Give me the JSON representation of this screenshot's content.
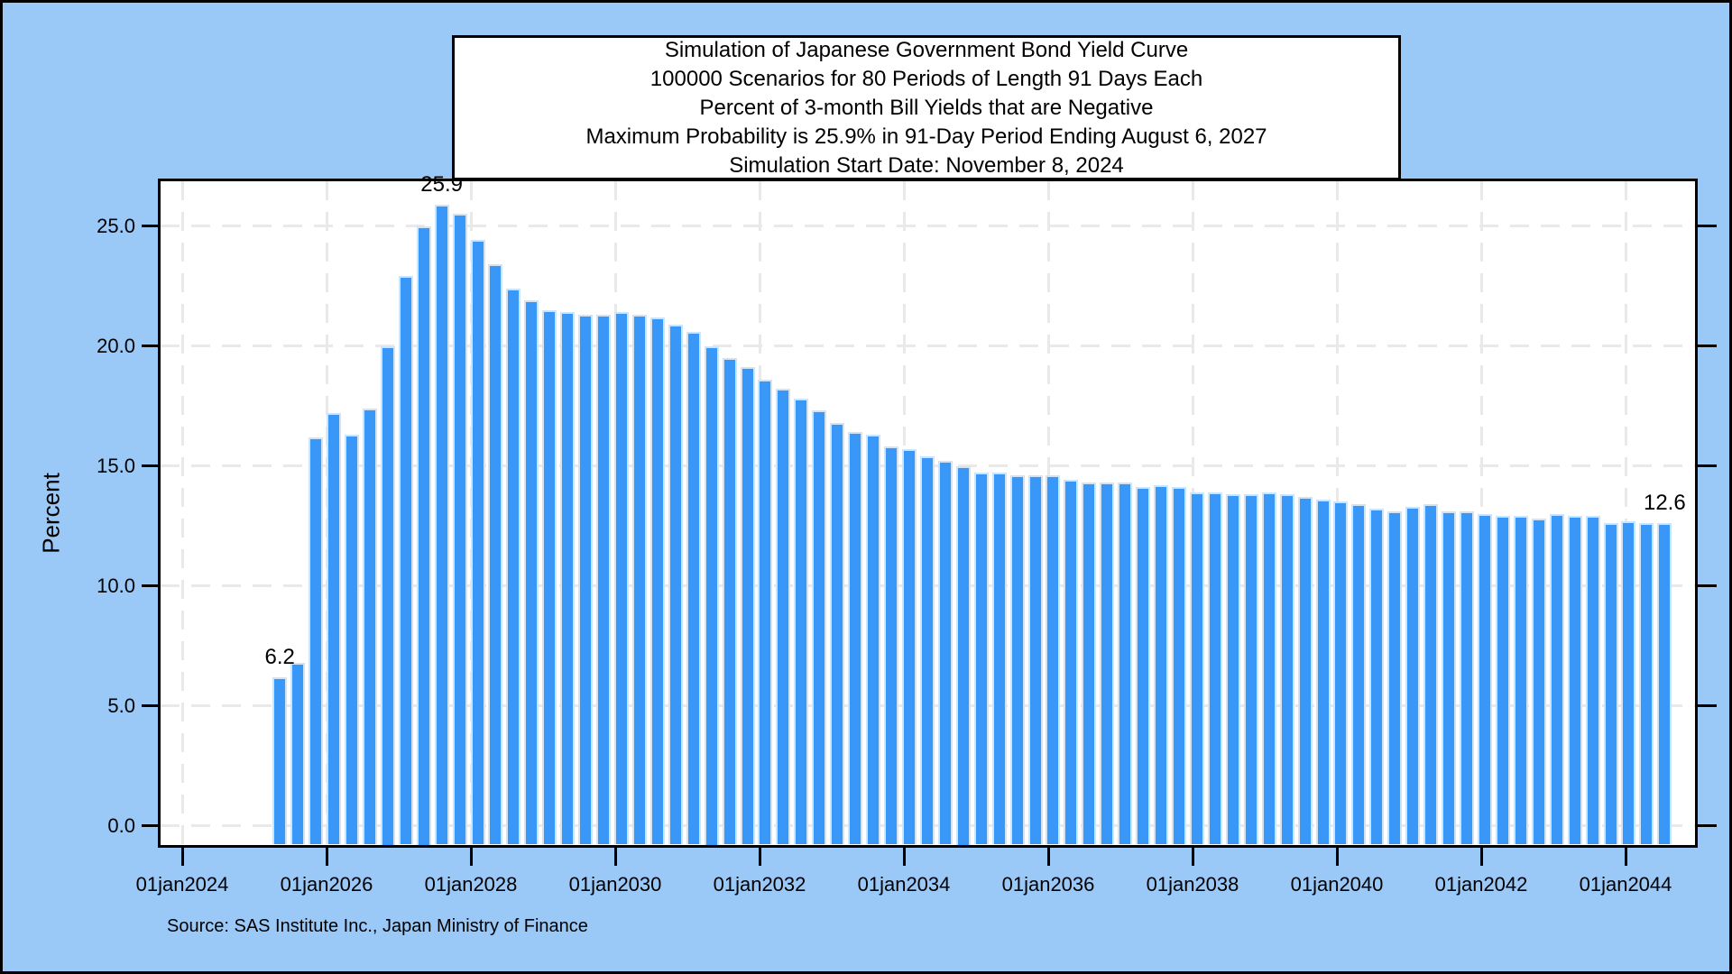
{
  "title_box": {
    "lines": [
      "Simulation of Japanese Government Bond Yield Curve",
      "100000 Scenarios for 80 Periods of Length 91 Days Each",
      "Percent of 3-month Bill Yields that are Negative",
      "Maximum Probability is 25.9% in 91-Day Period Ending August 6, 2027",
      "Simulation Start Date: November 8, 2024"
    ]
  },
  "y_axis": {
    "label": "Percent",
    "tick_labels": [
      "0.0",
      "5.0",
      "10.0",
      "15.0",
      "20.0",
      "25.0"
    ],
    "tick_values": [
      0,
      5,
      10,
      15,
      20,
      25
    ]
  },
  "x_axis": {
    "tick_labels": [
      "01jan2024",
      "01jan2026",
      "01jan2028",
      "01jan2030",
      "01jan2032",
      "01jan2034",
      "01jan2036",
      "01jan2038",
      "01jan2040",
      "01jan2042",
      "01jan2044"
    ]
  },
  "footnote": "Source: SAS Institute Inc., Japan Ministry of Finance",
  "annotations": [
    {
      "text": "6.2",
      "bar_index": 0
    },
    {
      "text": "25.9",
      "bar_index": 9
    },
    {
      "text": "12.6",
      "bar_index": 77
    }
  ],
  "colors": {
    "page_background": "#9AC9F7",
    "plot_background": "#FFFFFF",
    "bar_fill": "#3997F7",
    "bar_outline": "#CDE4FB",
    "gridline": "#E9E9E9",
    "frame": "#000000",
    "text": "#000000"
  },
  "chart_data": {
    "type": "bar",
    "title": "Simulation of Japanese Government Bond Yield Curve",
    "subtitle": "Percent of 3-month Bill Yields that are Negative",
    "ylabel": "Percent",
    "xlabel": "",
    "ylim": [
      0,
      26.9
    ],
    "grid": true,
    "x_description": "Consecutive 91-day simulation periods (plotted at period end dates), quarterly from May 2025 through July 2044",
    "x_tick_labels": [
      "01jan2024",
      "01jan2026",
      "01jan2028",
      "01jan2030",
      "01jan2032",
      "01jan2034",
      "01jan2036",
      "01jan2038",
      "01jan2040",
      "01jan2042",
      "01jan2044"
    ],
    "values": [
      6.2,
      6.8,
      16.2,
      17.2,
      16.3,
      17.4,
      20.0,
      22.9,
      25.0,
      25.9,
      25.5,
      24.4,
      23.4,
      22.4,
      21.9,
      21.5,
      21.4,
      21.3,
      21.3,
      21.4,
      21.3,
      21.2,
      20.9,
      20.6,
      20.0,
      19.5,
      19.1,
      18.6,
      18.2,
      17.8,
      17.3,
      16.8,
      16.4,
      16.3,
      15.8,
      15.7,
      15.4,
      15.2,
      15.0,
      14.7,
      14.7,
      14.6,
      14.6,
      14.6,
      14.4,
      14.3,
      14.3,
      14.3,
      14.1,
      14.2,
      14.1,
      13.9,
      13.9,
      13.8,
      13.8,
      13.9,
      13.8,
      13.7,
      13.6,
      13.5,
      13.4,
      13.2,
      13.1,
      13.3,
      13.4,
      13.1,
      13.1,
      13.0,
      12.9,
      12.9,
      12.8,
      13.0,
      12.9,
      12.9,
      12.6,
      12.7,
      12.6,
      12.6
    ],
    "max_value": 25.9,
    "max_label": "Maximum Probability is 25.9% in 91-Day Period Ending August 6, 2027",
    "first_bar_label": "6.2",
    "max_bar_label": "25.9",
    "last_bar_label": "12.6"
  }
}
